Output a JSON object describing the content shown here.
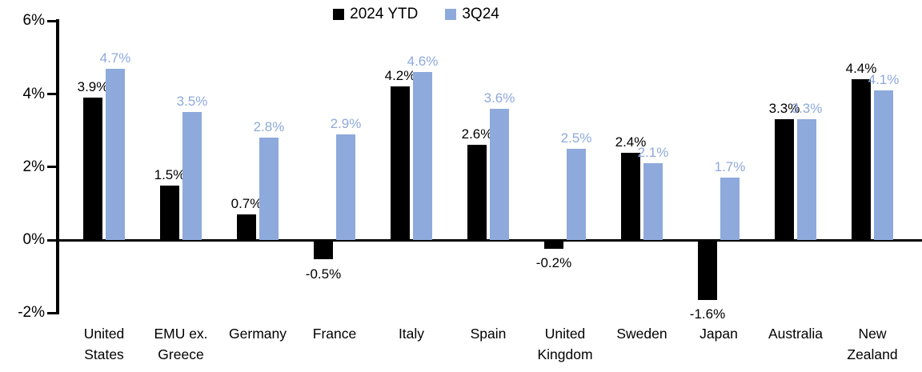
{
  "chart_data": {
    "type": "bar",
    "title": "",
    "categories": [
      "United States",
      "EMU ex. Greece",
      "Germany",
      "France",
      "Italy",
      "Spain",
      "United Kingdom",
      "Sweden",
      "Japan",
      "Australia",
      "New Zealand"
    ],
    "category_label_lines": [
      [
        "United",
        "States"
      ],
      [
        "EMU ex.",
        "Greece"
      ],
      [
        "Germany"
      ],
      [
        "France"
      ],
      [
        "Italy"
      ],
      [
        "Spain"
      ],
      [
        "United",
        "Kingdom"
      ],
      [
        "Sweden"
      ],
      [
        "Japan"
      ],
      [
        "Australia"
      ],
      [
        "New",
        "Zealand"
      ]
    ],
    "series": [
      {
        "name": "2024 YTD",
        "color": "#000000",
        "label_color": "#000000",
        "values": [
          3.9,
          1.5,
          0.7,
          -0.5,
          4.2,
          2.6,
          -0.2,
          2.4,
          -1.6,
          3.3,
          4.4
        ],
        "labels": [
          "3.9%",
          "1.5%",
          "0.7%",
          "-0.5%",
          "4.2%",
          "2.6%",
          "-0.2%",
          "2.4%",
          "-1.6%",
          "3.3%",
          "4.4%"
        ]
      },
      {
        "name": "3Q24",
        "color": "#8EA9DB",
        "label_color": "#8EA9DB",
        "values": [
          4.7,
          3.5,
          2.8,
          2.9,
          4.6,
          3.6,
          2.5,
          2.1,
          1.7,
          3.3,
          4.1
        ],
        "labels": [
          "4.7%",
          "3.5%",
          "2.8%",
          "2.9%",
          "4.6%",
          "3.6%",
          "2.5%",
          "2.1%",
          "1.7%",
          "3.3%",
          "4.1%"
        ]
      }
    ],
    "y_axis": {
      "min": -2,
      "max": 6,
      "tick_values": [
        6,
        4,
        2,
        0,
        -2
      ],
      "tick_labels": [
        "6%",
        "4%",
        "2%",
        "0%",
        "-2%"
      ],
      "unit": "%"
    },
    "legend": {
      "position": "top-center",
      "items": [
        "2024 YTD",
        "3Q24"
      ]
    },
    "grid": false,
    "background": "#FFFFFF",
    "axis_color": "#000000"
  }
}
